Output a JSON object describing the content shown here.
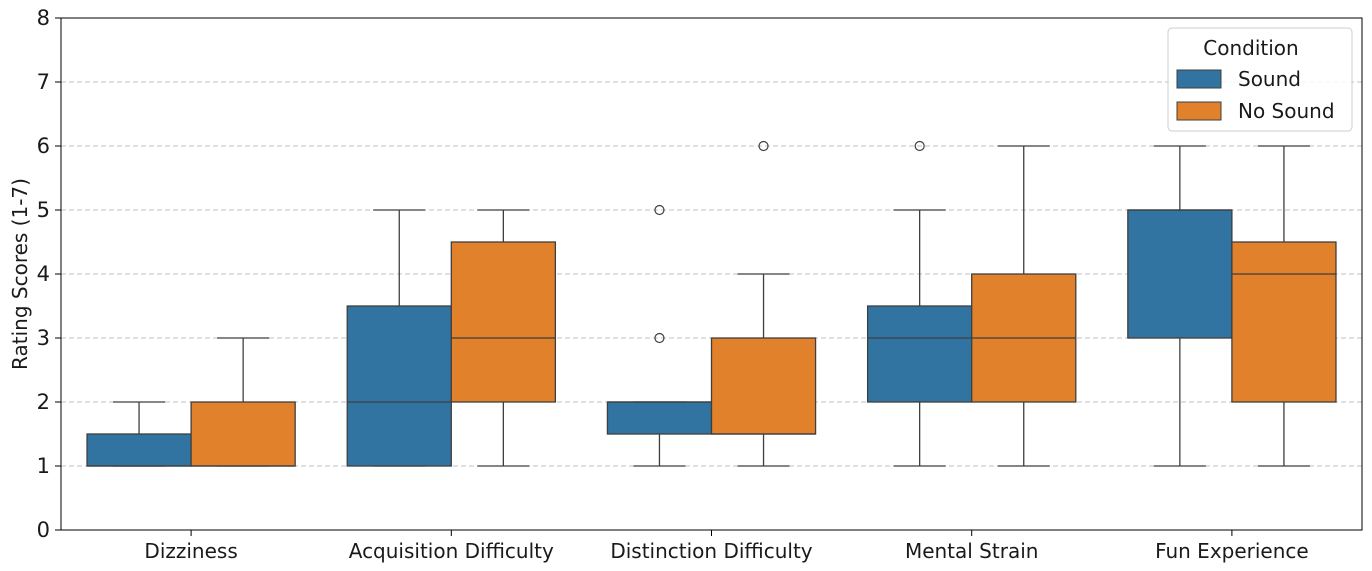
{
  "chart_data": {
    "type": "box",
    "ylabel": "Rating Scores (1-7)",
    "xlabel": "",
    "ylim": [
      0,
      8
    ],
    "yticks": [
      "0",
      "1",
      "2",
      "3",
      "4",
      "5",
      "6",
      "7",
      "8"
    ],
    "grid": "horizontal dashed",
    "categories": [
      "Dizziness",
      "Acquisition Difficulty",
      "Distinction Difficulty",
      "Mental Strain",
      "Fun Experience"
    ],
    "legend": {
      "title": "Condition",
      "position": "top-right",
      "entries": [
        "Sound",
        "No Sound"
      ]
    },
    "series": [
      {
        "name": "Sound",
        "color": "#3274a1",
        "boxes": [
          {
            "whislo": 1,
            "q1": 1,
            "med": 1,
            "q3": 1.5,
            "whishi": 2,
            "fliers": []
          },
          {
            "whislo": 1,
            "q1": 1,
            "med": 2,
            "q3": 3.5,
            "whishi": 5,
            "fliers": []
          },
          {
            "whislo": 1,
            "q1": 1.5,
            "med": 2,
            "q3": 2,
            "whishi": 2,
            "fliers": [
              3,
              5
            ]
          },
          {
            "whislo": 1,
            "q1": 2,
            "med": 3,
            "q3": 3.5,
            "whishi": 5,
            "fliers": [
              6
            ]
          },
          {
            "whislo": 1,
            "q1": 3,
            "med": 5,
            "q3": 5,
            "whishi": 6,
            "fliers": []
          }
        ]
      },
      {
        "name": "No Sound",
        "color": "#e1812c",
        "boxes": [
          {
            "whislo": 1,
            "q1": 1,
            "med": 1,
            "q3": 2,
            "whishi": 3,
            "fliers": []
          },
          {
            "whislo": 1,
            "q1": 2,
            "med": 3,
            "q3": 4.5,
            "whishi": 5,
            "fliers": []
          },
          {
            "whislo": 1,
            "q1": 1.5,
            "med": 1.5,
            "q3": 3,
            "whishi": 4,
            "fliers": [
              6
            ]
          },
          {
            "whislo": 1,
            "q1": 2,
            "med": 3,
            "q3": 4,
            "whishi": 6,
            "fliers": []
          },
          {
            "whislo": 1,
            "q1": 2,
            "med": 4,
            "q3": 4.5,
            "whishi": 6,
            "fliers": []
          }
        ]
      }
    ]
  }
}
